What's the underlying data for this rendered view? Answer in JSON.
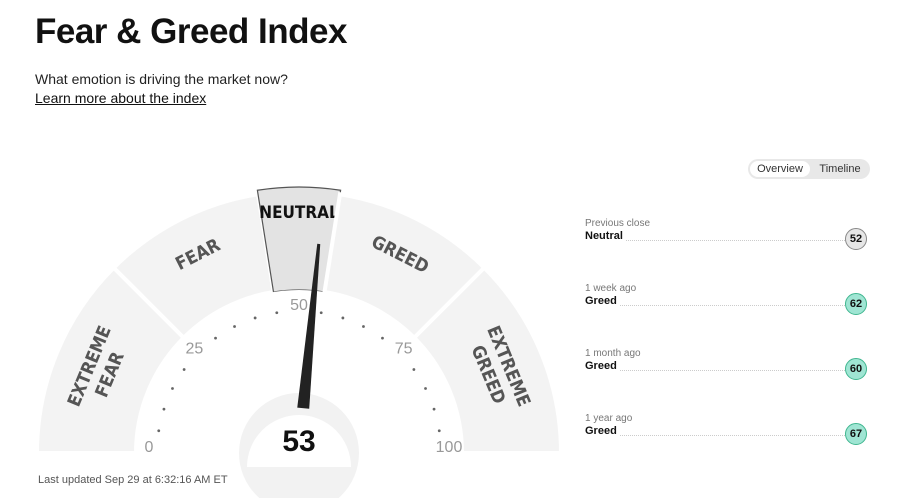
{
  "header": {
    "title": "Fear & Greed Index",
    "subtitle": "What emotion is driving the market now?",
    "learn_more": "Learn more about the index"
  },
  "gauge": {
    "value": 53,
    "current_rating": "Neutral",
    "segments": [
      {
        "label": [
          "EXTREME",
          "FEAR"
        ],
        "from": 0,
        "to": 25
      },
      {
        "label": [
          "FEAR"
        ],
        "from": 25,
        "to": 45
      },
      {
        "label": [
          "NEUTRAL"
        ],
        "from": 45,
        "to": 55,
        "active": true
      },
      {
        "label": [
          "GREED"
        ],
        "from": 55,
        "to": 75
      },
      {
        "label": [
          "EXTREME",
          "GREED"
        ],
        "from": 75,
        "to": 100
      }
    ],
    "ticks": [
      "0",
      "25",
      "50",
      "75",
      "100"
    ],
    "last_updated": "Last updated Sep 29 at 6:32:16 AM ET"
  },
  "colors": {
    "segment": "#f3f3f3",
    "active_segment": "#e3e3e3",
    "needle": "#222222",
    "greed_badge": "#9fe5d3",
    "neutral_badge": "#e6e6e6"
  },
  "toggle": {
    "overview": "Overview",
    "timeline": "Timeline",
    "selected": "Overview"
  },
  "history": [
    {
      "label": "Previous close",
      "rating": "Neutral",
      "value": "52",
      "badge": "neutral"
    },
    {
      "label": "1 week ago",
      "rating": "Greed",
      "value": "62",
      "badge": "greed"
    },
    {
      "label": "1 month ago",
      "rating": "Greed",
      "value": "60",
      "badge": "greed"
    },
    {
      "label": "1 year ago",
      "rating": "Greed",
      "value": "67",
      "badge": "greed"
    }
  ]
}
